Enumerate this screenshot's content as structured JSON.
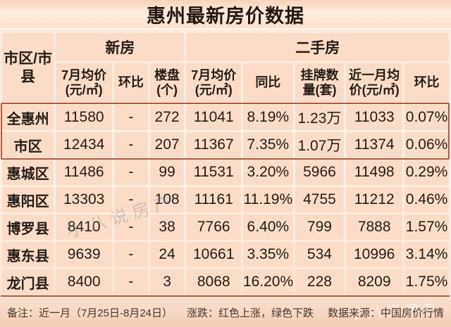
{
  "title": "惠州最新房价数据",
  "colors": {
    "cell_bg": "#fbdcc8",
    "page_bg": "#fdf0e5",
    "accent_line": "#b05a3e",
    "rise_red": "#c73c3c",
    "fall_green": "#27a05e"
  },
  "chart_data": {
    "type": "table",
    "title": "惠州最新房价数据",
    "corner_header": "市区/市县",
    "column_groups": [
      {
        "label": "新房",
        "colspan": 3
      },
      {
        "label": "二手房",
        "colspan": 5
      }
    ],
    "columns": [
      "7月均价(元/㎡)",
      "环比",
      "楼盘(个)",
      "7月均价(元/㎡)",
      "同比",
      "挂牌数量(套)",
      "近一月均价(元/㎡)",
      "环比"
    ],
    "rows": [
      {
        "region": "全惠州",
        "values": [
          "11580",
          "-",
          "272",
          "11041",
          "8.19%",
          "1.23万",
          "11033",
          "0.07%"
        ],
        "value_colors": [
          null,
          null,
          null,
          null,
          "red",
          null,
          null,
          "green"
        ]
      },
      {
        "region": "市区",
        "values": [
          "12434",
          "-",
          "207",
          "11367",
          "7.35%",
          "1.07万",
          "11374",
          "0.06%"
        ],
        "value_colors": [
          null,
          null,
          null,
          null,
          "red",
          null,
          null,
          "red"
        ]
      },
      {
        "region": "惠城区",
        "values": [
          "11486",
          "-",
          "99",
          "11531",
          "3.20%",
          "5966",
          "11498",
          "0.29%"
        ],
        "value_colors": [
          null,
          null,
          null,
          null,
          "red",
          null,
          null,
          "green"
        ]
      },
      {
        "region": "惠阳区",
        "values": [
          "13303",
          "-",
          "108",
          "11161",
          "11.19%",
          "4755",
          "11212",
          "0.46%"
        ],
        "value_colors": [
          null,
          null,
          null,
          null,
          "red",
          null,
          null,
          "red"
        ]
      },
      {
        "region": "博罗县",
        "values": [
          "8410",
          "-",
          "38",
          "7766",
          "6.40%",
          "799",
          "7888",
          "1.57%"
        ],
        "value_colors": [
          null,
          null,
          null,
          null,
          "red",
          null,
          null,
          "red"
        ]
      },
      {
        "region": "惠东县",
        "values": [
          "9639",
          "-",
          "24",
          "10661",
          "3.35%",
          "534",
          "10996",
          "3.14%"
        ],
        "value_colors": [
          null,
          null,
          null,
          null,
          "red",
          null,
          null,
          "red"
        ]
      },
      {
        "region": "龙门县",
        "values": [
          "8400",
          "-",
          "3",
          "8068",
          "16.20%",
          "228",
          "8209",
          "1.75%"
        ],
        "value_colors": [
          null,
          null,
          null,
          null,
          "green",
          null,
          null,
          "red"
        ]
      }
    ],
    "highlighted_row_group": [
      0,
      1
    ]
  },
  "footer": {
    "note": "备注：近一月（7月25日-8月24日）",
    "legend": "涨跌：红色上涨，绿色下跌",
    "source": "数据来源：中国房价行情"
  },
  "watermark": "小八说房产"
}
